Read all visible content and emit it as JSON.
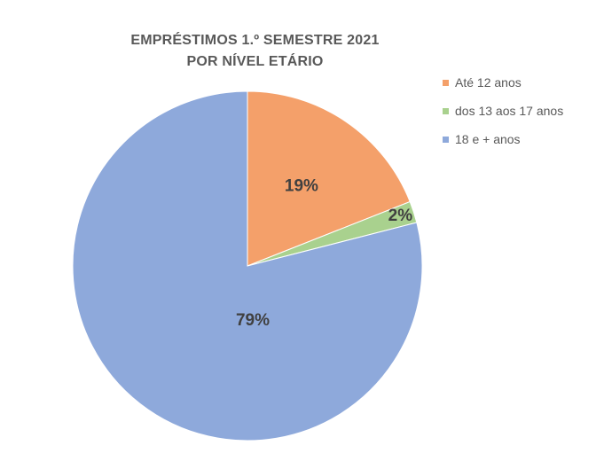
{
  "chart_data": {
    "type": "pie",
    "title_line1": "EMPRÉSTIMOS  1.º SEMESTRE 2021",
    "title_line2": "POR NÍVEL ETÁRIO",
    "categories": [
      "Até 12 anos",
      "dos 13 aos 17 anos",
      "18 e + anos"
    ],
    "values": [
      19,
      2,
      79
    ],
    "data_labels": [
      "19%",
      "2%",
      "79%"
    ],
    "colors": [
      "#F4A06A",
      "#A9D18E",
      "#8EA9DB"
    ],
    "legend_position": "right",
    "start_angle": "12 o'clock, clockwise"
  }
}
